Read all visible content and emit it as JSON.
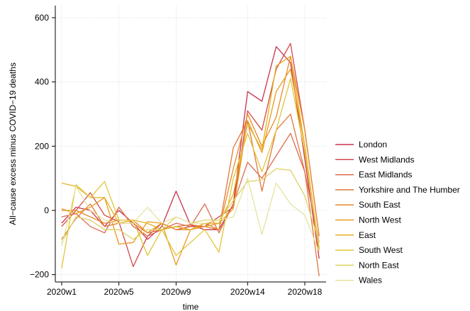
{
  "chart_data": {
    "type": "line",
    "xlabel": "time",
    "ylabel": "All−cause excess minus COVID−19 deaths",
    "x_ticks": [
      "2020w1",
      "2020w5",
      "2020w9",
      "2020w14",
      "2020w18"
    ],
    "x_tick_weeks": [
      1,
      5,
      9,
      14,
      18
    ],
    "x_range": [
      1,
      19
    ],
    "y_ticks": [
      -200,
      0,
      200,
      400,
      600
    ],
    "ylim": [
      -225,
      620
    ],
    "grid": true,
    "legend_placement": "right",
    "categories": [
      1,
      2,
      3,
      4,
      5,
      6,
      7,
      8,
      9,
      10,
      11,
      12,
      13,
      14,
      15,
      16,
      17,
      18,
      19
    ],
    "series": [
      {
        "name": "London",
        "color": "#c8314d",
        "values": [
          -40,
          10,
          0,
          -50,
          0,
          -40,
          -90,
          -50,
          60,
          -45,
          -60,
          -60,
          20,
          370,
          340,
          510,
          460,
          160,
          -150
        ]
      },
      {
        "name": "West Midlands",
        "color": "#d24848",
        "values": [
          -50,
          0,
          55,
          -15,
          -35,
          -175,
          -80,
          -40,
          -60,
          -50,
          -50,
          -20,
          10,
          310,
          250,
          440,
          520,
          250,
          -80
        ]
      },
      {
        "name": "East Midlands",
        "color": "#db6a4f",
        "values": [
          -20,
          -10,
          -50,
          -70,
          10,
          -50,
          -80,
          -60,
          -40,
          -50,
          20,
          -70,
          20,
          150,
          100,
          170,
          240,
          120,
          -100
        ]
      },
      {
        "name": "Yorkshire and The Humber",
        "color": "#e0783a",
        "values": [
          -90,
          -25,
          20,
          -50,
          -40,
          -40,
          -70,
          -60,
          -50,
          -45,
          -50,
          -60,
          195,
          280,
          60,
          250,
          300,
          120,
          -205
        ]
      },
      {
        "name": "South East",
        "color": "#e88a2a",
        "values": [
          0,
          0,
          -20,
          -40,
          -30,
          -30,
          -70,
          -40,
          -60,
          -60,
          -40,
          -60,
          130,
          300,
          200,
          290,
          480,
          250,
          -80
        ]
      },
      {
        "name": "North West",
        "color": "#e99a1e",
        "values": [
          5,
          -10,
          10,
          40,
          -105,
          -100,
          -35,
          -40,
          -170,
          -60,
          -50,
          -40,
          5,
          280,
          180,
          370,
          440,
          200,
          -130
        ]
      },
      {
        "name": "East",
        "color": "#e6b01e",
        "values": [
          85,
          75,
          40,
          40,
          -40,
          -30,
          -40,
          -60,
          -50,
          -60,
          -40,
          -40,
          50,
          270,
          190,
          450,
          480,
          200,
          -120
        ]
      },
      {
        "name": "South West",
        "color": "#e2c53a",
        "values": [
          -180,
          80,
          40,
          90,
          -30,
          -30,
          -140,
          -60,
          -140,
          -100,
          -60,
          -130,
          100,
          240,
          120,
          250,
          410,
          180,
          -115
        ]
      },
      {
        "name": "North East",
        "color": "#ddd264",
        "values": [
          -100,
          -20,
          -30,
          -60,
          -60,
          -90,
          -60,
          -60,
          -20,
          -40,
          -30,
          -30,
          30,
          90,
          95,
          130,
          125,
          45,
          -100
        ]
      },
      {
        "name": "Wales",
        "color": "#e6e39f",
        "values": [
          -110,
          75,
          0,
          -30,
          -40,
          -40,
          10,
          -40,
          -20,
          -40,
          -40,
          -30,
          -20,
          100,
          -75,
          85,
          20,
          -15,
          -130
        ]
      }
    ]
  }
}
